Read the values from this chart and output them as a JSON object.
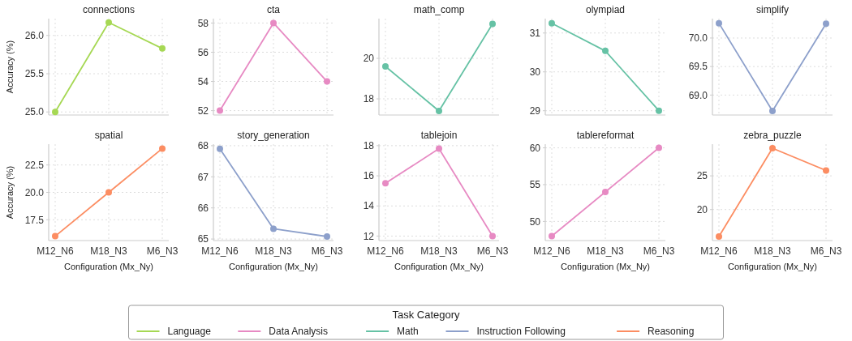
{
  "chart_data": [
    {
      "type": "line",
      "title": "connections",
      "ylabel": "Accuracy (%)",
      "categories": [
        "M12_N6",
        "M18_N3",
        "M6_N3"
      ],
      "series": [
        {
          "name": "Language",
          "color": "#a6d854",
          "values": [
            25.0,
            26.17,
            25.83
          ]
        }
      ],
      "ylim": [
        24.96,
        26.22
      ],
      "yticks": [
        {
          "value": 25,
          "label": "25.0"
        },
        25.5,
        {
          "value": 26,
          "label": "26.0"
        }
      ],
      "tick_labels": "y",
      "grid": true,
      "marker": "circle",
      "legend": "bottom",
      "legend_title": "Task Category"
    },
    {
      "type": "line",
      "title": "cta",
      "categories": [
        "M12_N6",
        "M18_N3",
        "M6_N3"
      ],
      "series": [
        {
          "name": "Data Analysis",
          "color": "#e78ac3",
          "values": [
            52,
            58,
            54
          ]
        }
      ],
      "ylim": [
        51.7,
        58.3
      ],
      "yticks": [
        52,
        54,
        56,
        58
      ],
      "tick_labels": "y",
      "grid": true,
      "marker": "circle"
    },
    {
      "type": "line",
      "title": "math_comp",
      "categories": [
        "M12_N6",
        "M18_N3",
        "M6_N3"
      ],
      "series": [
        {
          "name": "Math",
          "color": "#66c2a5",
          "values": [
            19.6,
            17.4,
            21.7
          ]
        }
      ],
      "ylim": [
        17.2,
        21.96
      ],
      "yticks": [
        18,
        20
      ],
      "tick_labels": "y",
      "grid": true,
      "marker": "circle"
    },
    {
      "type": "line",
      "title": "olympiad",
      "categories": [
        "M12_N6",
        "M18_N3",
        "M6_N3"
      ],
      "series": [
        {
          "name": "Math",
          "color": "#66c2a5",
          "values": [
            31.25,
            30.54,
            29.0
          ]
        }
      ],
      "ylim": [
        28.89,
        31.37
      ],
      "yticks": [
        29,
        30,
        31
      ],
      "tick_labels": "y",
      "grid": true,
      "marker": "circle"
    },
    {
      "type": "line",
      "title": "simplify",
      "categories": [
        "M12_N6",
        "M18_N3",
        "M6_N3"
      ],
      "series": [
        {
          "name": "Instruction Following",
          "color": "#8da0cb",
          "values": [
            70.26,
            68.72,
            70.25
          ]
        }
      ],
      "ylim": [
        68.65,
        70.34
      ],
      "yticks": [
        {
          "value": 69,
          "label": "69.0"
        },
        69.5,
        {
          "value": 70,
          "label": "70.0"
        }
      ],
      "tick_labels": "y",
      "grid": true,
      "marker": "circle"
    },
    {
      "type": "line",
      "title": "spatial",
      "xlabel": "Configuration (Mx_Ny)",
      "ylabel": "Accuracy (%)",
      "categories": [
        "M12_N6",
        "M18_N3",
        "M6_N3"
      ],
      "series": [
        {
          "name": "Reasoning",
          "color": "#fc8d62",
          "values": [
            16.0,
            20.0,
            24.0
          ]
        }
      ],
      "ylim": [
        15.6,
        24.4
      ],
      "yticks": [
        17.5,
        {
          "value": 20,
          "label": "20.0"
        },
        22.5
      ],
      "grid": true,
      "marker": "circle"
    },
    {
      "type": "line",
      "title": "story_generation",
      "xlabel": "Configuration (Mx_Ny)",
      "categories": [
        "M12_N6",
        "M18_N3",
        "M6_N3"
      ],
      "series": [
        {
          "name": "Instruction Following",
          "color": "#8da0cb",
          "values": [
            67.9,
            65.33,
            65.08
          ]
        }
      ],
      "ylim": [
        64.95,
        68.05
      ],
      "yticks": [
        65,
        66,
        67,
        68
      ],
      "grid": true,
      "marker": "circle"
    },
    {
      "type": "line",
      "title": "tablejoin",
      "xlabel": "Configuration (Mx_Ny)",
      "categories": [
        "M12_N6",
        "M18_N3",
        "M6_N3"
      ],
      "series": [
        {
          "name": "Data Analysis",
          "color": "#e78ac3",
          "values": [
            15.5,
            17.8,
            12.0
          ]
        }
      ],
      "ylim": [
        11.7,
        18.1
      ],
      "yticks": [
        12,
        14,
        16,
        18
      ],
      "grid": true,
      "marker": "circle"
    },
    {
      "type": "line",
      "title": "tablereformat",
      "xlabel": "Configuration (Mx_Ny)",
      "categories": [
        "M12_N6",
        "M18_N3",
        "M6_N3"
      ],
      "series": [
        {
          "name": "Data Analysis",
          "color": "#e78ac3",
          "values": [
            48.0,
            54.0,
            60.0
          ]
        }
      ],
      "ylim": [
        47.4,
        60.5
      ],
      "yticks": [
        50,
        55,
        60
      ],
      "grid": true,
      "marker": "circle"
    },
    {
      "type": "line",
      "title": "zebra_puzzle",
      "xlabel": "Configuration (Mx_Ny)",
      "categories": [
        "M12_N6",
        "M18_N3",
        "M6_N3"
      ],
      "series": [
        {
          "name": "Reasoning",
          "color": "#fc8d62",
          "values": [
            16.0,
            29.1,
            25.8
          ]
        }
      ],
      "ylim": [
        15.4,
        29.7
      ],
      "yticks": [
        20,
        25
      ],
      "grid": true,
      "marker": "circle"
    }
  ]
}
